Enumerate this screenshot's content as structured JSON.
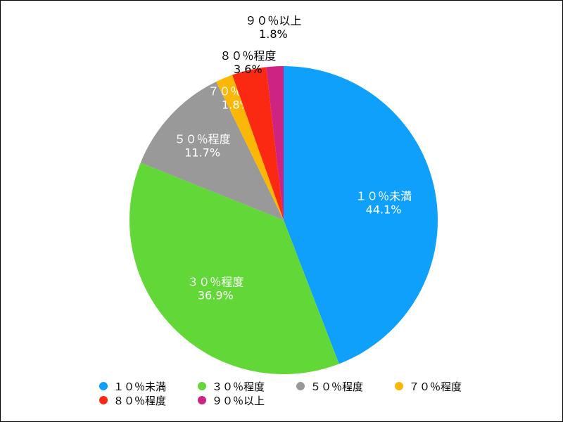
{
  "chart_data": {
    "type": "pie",
    "title": "",
    "legend_position": "bottom",
    "slices": [
      {
        "label": "１０％未満",
        "value": 44.1,
        "value_label": "44.1%",
        "color": "#0fa0fc"
      },
      {
        "label": "３０％程度",
        "value": 36.9,
        "value_label": "36.9%",
        "color": "#62d838"
      },
      {
        "label": "５０％程度",
        "value": 11.7,
        "value_label": "11.7%",
        "color": "#999999"
      },
      {
        "label": "７０％程度",
        "value": 1.8,
        "value_label": "1.8%",
        "color": "#fbb706"
      },
      {
        "label": "８０％程度",
        "value": 3.6,
        "value_label": "3.6%",
        "color": "#fb2911"
      },
      {
        "label": "９０％以上",
        "value": 1.8,
        "value_label": "1.8%",
        "color": "#cd2382"
      }
    ]
  }
}
